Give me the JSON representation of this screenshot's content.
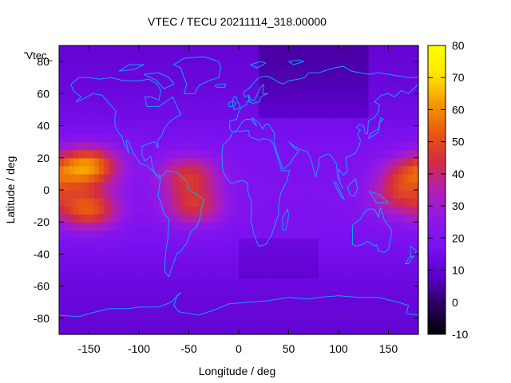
{
  "chart_data": {
    "type": "heatmap",
    "title": "VTEC / TECU 20211114_318.00000",
    "xlabel": "Longitude / deg",
    "ylabel": "Latitude / deg",
    "key_label": "'Vtec_",
    "xlim": [
      -180,
      180
    ],
    "ylim": [
      -90,
      90
    ],
    "x_ticks": [
      -150,
      -100,
      -50,
      0,
      50,
      100,
      150
    ],
    "y_ticks": [
      -80,
      -60,
      -40,
      -20,
      0,
      20,
      40,
      60,
      80
    ],
    "colorbar": {
      "range": [
        -10,
        80
      ],
      "ticks": [
        -10,
        0,
        10,
        20,
        30,
        40,
        50,
        60,
        70,
        80
      ],
      "palette": [
        "#000000",
        "#2a0060",
        "#5a00c8",
        "#7a10f0",
        "#8f18e8",
        "#b21fb0",
        "#d42c40",
        "#e85a10",
        "#f59a00",
        "#ffe600",
        "#ffff00"
      ]
    },
    "grid": false,
    "coastline_color": "#00b4ff",
    "field_peaks": [
      {
        "name": "",
        "lon": -150,
        "lat": 15,
        "vtec": 55
      },
      {
        "name": "",
        "lon": -150,
        "lat": -12,
        "vtec": 48
      },
      {
        "name": "",
        "lon": -50,
        "lat": 10,
        "vtec": 40
      },
      {
        "name": "",
        "lon": -45,
        "lat": -10,
        "vtec": 40
      },
      {
        "name": "",
        "lon": 170,
        "lat": 10,
        "vtec": 38
      },
      {
        "name": "",
        "lon": 160,
        "lat": -5,
        "vtec": 34
      }
    ],
    "background_vtec": 15
  }
}
